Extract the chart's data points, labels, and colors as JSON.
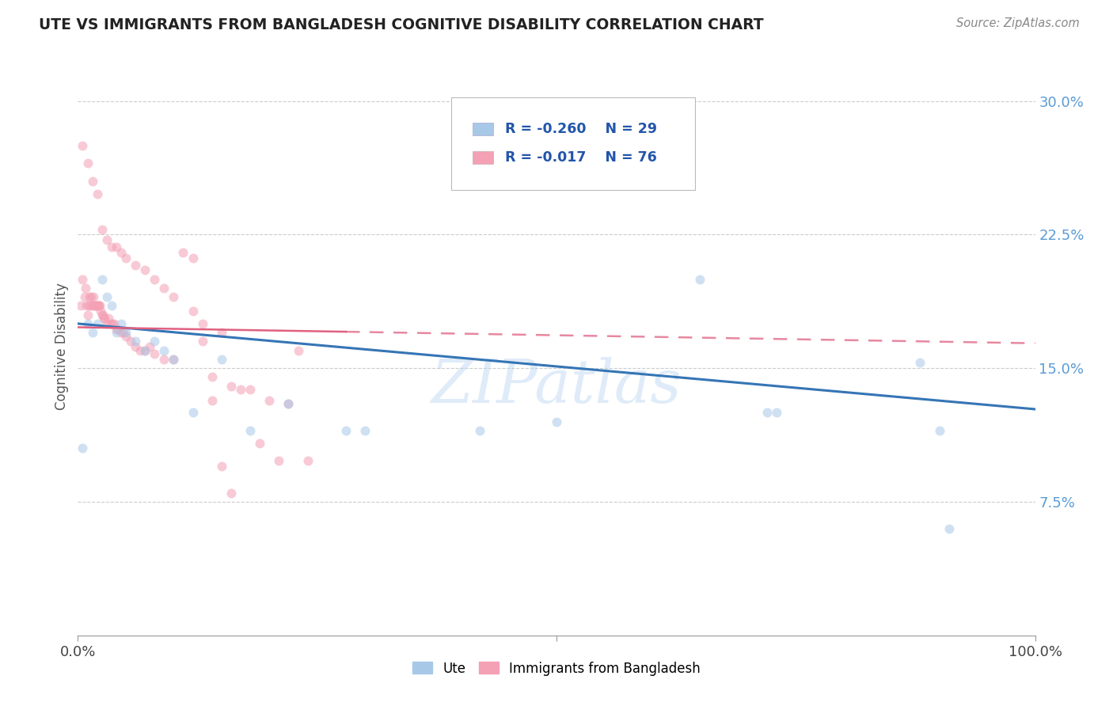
{
  "title": "UTE VS IMMIGRANTS FROM BANGLADESH COGNITIVE DISABILITY CORRELATION CHART",
  "source": "Source: ZipAtlas.com",
  "ylabel": "Cognitive Disability",
  "yticks": [
    0.075,
    0.15,
    0.225,
    0.3
  ],
  "ytick_labels": [
    "7.5%",
    "15.0%",
    "22.5%",
    "30.0%"
  ],
  "xlim": [
    0.0,
    1.0
  ],
  "ylim": [
    0.0,
    0.325
  ],
  "ute_color": "#a8c8e8",
  "bangladesh_color": "#f4a0b5",
  "trendline_ute_color": "#3575b5",
  "trendline_bangladesh_color": "#e06080",
  "legend_r_ute": "R = -0.260",
  "legend_n_ute": "N = 29",
  "legend_r_bd": "R = -0.017",
  "legend_n_bd": "N = 76",
  "legend_label_ute": "Ute",
  "legend_label_bd": "Immigrants from Bangladesh",
  "ute_x": [
    0.005,
    0.01,
    0.015,
    0.02,
    0.025,
    0.03,
    0.035,
    0.04,
    0.045,
    0.05,
    0.06,
    0.07,
    0.08,
    0.09,
    0.1,
    0.12,
    0.15,
    0.18,
    0.22,
    0.28,
    0.3,
    0.42,
    0.5,
    0.65,
    0.72,
    0.73,
    0.88,
    0.9,
    0.91
  ],
  "ute_y": [
    0.105,
    0.175,
    0.17,
    0.175,
    0.2,
    0.19,
    0.185,
    0.17,
    0.175,
    0.17,
    0.165,
    0.16,
    0.165,
    0.16,
    0.155,
    0.125,
    0.155,
    0.115,
    0.13,
    0.115,
    0.115,
    0.115,
    0.12,
    0.2,
    0.125,
    0.125,
    0.153,
    0.115,
    0.06
  ],
  "bd_x": [
    0.003,
    0.005,
    0.007,
    0.008,
    0.009,
    0.01,
    0.011,
    0.012,
    0.013,
    0.014,
    0.015,
    0.016,
    0.017,
    0.018,
    0.019,
    0.02,
    0.021,
    0.022,
    0.023,
    0.024,
    0.025,
    0.026,
    0.027,
    0.028,
    0.03,
    0.032,
    0.034,
    0.036,
    0.038,
    0.04,
    0.042,
    0.045,
    0.048,
    0.05,
    0.055,
    0.06,
    0.065,
    0.07,
    0.075,
    0.08,
    0.09,
    0.1,
    0.11,
    0.12,
    0.13,
    0.14,
    0.15,
    0.16,
    0.17,
    0.18,
    0.19,
    0.2,
    0.21,
    0.22,
    0.23,
    0.24,
    0.005,
    0.01,
    0.015,
    0.02,
    0.025,
    0.03,
    0.035,
    0.04,
    0.045,
    0.05,
    0.06,
    0.07,
    0.08,
    0.09,
    0.1,
    0.12,
    0.13,
    0.14,
    0.15,
    0.16
  ],
  "bd_y": [
    0.185,
    0.2,
    0.19,
    0.195,
    0.185,
    0.18,
    0.185,
    0.19,
    0.185,
    0.19,
    0.185,
    0.19,
    0.185,
    0.185,
    0.185,
    0.185,
    0.185,
    0.185,
    0.185,
    0.182,
    0.18,
    0.18,
    0.178,
    0.178,
    0.175,
    0.178,
    0.175,
    0.175,
    0.175,
    0.172,
    0.172,
    0.17,
    0.17,
    0.168,
    0.165,
    0.162,
    0.16,
    0.16,
    0.162,
    0.158,
    0.155,
    0.155,
    0.215,
    0.212,
    0.165,
    0.132,
    0.17,
    0.14,
    0.138,
    0.138,
    0.108,
    0.132,
    0.098,
    0.13,
    0.16,
    0.098,
    0.275,
    0.265,
    0.255,
    0.248,
    0.228,
    0.222,
    0.218,
    0.218,
    0.215,
    0.212,
    0.208,
    0.205,
    0.2,
    0.195,
    0.19,
    0.182,
    0.175,
    0.145,
    0.095,
    0.08
  ],
  "trendline_bd_x0": 0.0,
  "trendline_bd_y0": 0.173,
  "trendline_bd_x1": 1.0,
  "trendline_bd_y1": 0.164,
  "trendline_bd_solid_end": 0.28,
  "trendline_ute_x0": 0.0,
  "trendline_ute_y0": 0.175,
  "trendline_ute_x1": 1.0,
  "trendline_ute_y1": 0.127,
  "watermark": "ZIPatlas",
  "marker_size": 75,
  "alpha_scatter": 0.55
}
